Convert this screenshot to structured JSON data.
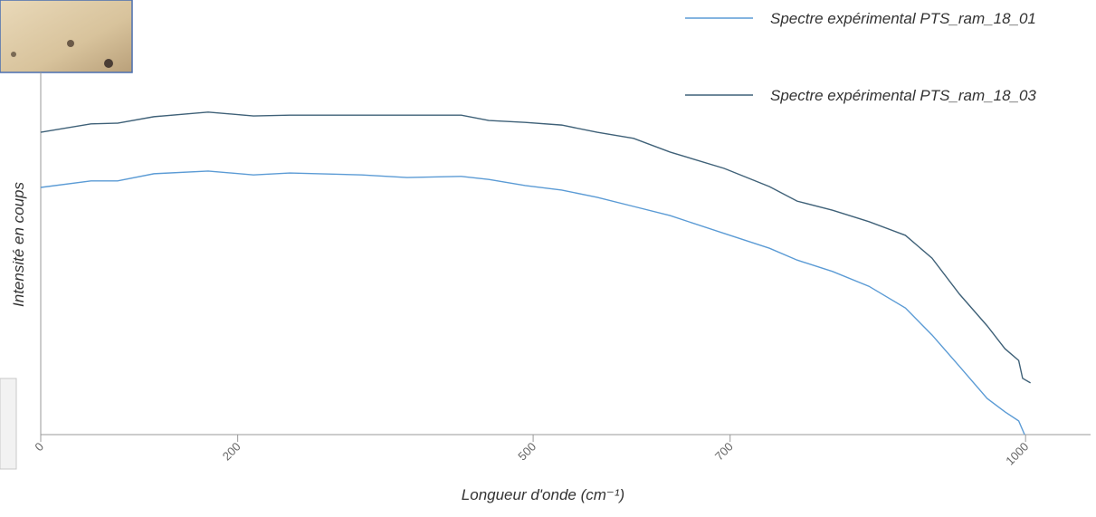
{
  "chart_data": {
    "type": "line",
    "xlabel": "Longueur d'onde (cm⁻¹)",
    "ylabel": "Intensité en coups",
    "xlim": [
      0,
      1066
    ],
    "xticks": [
      0,
      200,
      500,
      700,
      1000
    ],
    "ylim": [
      0,
      100
    ],
    "series": [
      {
        "name": "Spectre expérimental PTS_ram_18_01",
        "color": "#5b9bd5",
        "x": [
          0,
          51,
          78,
          115,
          170,
          216,
          253,
          326,
          372,
          427,
          455,
          492,
          529,
          565,
          602,
          639,
          694,
          740,
          768,
          804,
          841,
          878,
          905,
          933,
          961,
          979,
          993,
          999
        ],
        "values": [
          65.0,
          66.7,
          66.7,
          68.6,
          69.3,
          68.3,
          68.8,
          68.3,
          67.6,
          67.9,
          67.1,
          65.5,
          64.3,
          62.4,
          60.0,
          57.6,
          52.9,
          49.0,
          45.9,
          42.9,
          39.0,
          33.3,
          26.2,
          17.9,
          9.5,
          6.0,
          3.6,
          0
        ]
      },
      {
        "name": "Spectre expérimental PTS_ram_18_03",
        "color": "#3f6178",
        "x": [
          0,
          51,
          78,
          115,
          170,
          216,
          253,
          326,
          372,
          427,
          455,
          492,
          529,
          565,
          602,
          639,
          694,
          740,
          768,
          804,
          841,
          878,
          905,
          933,
          961,
          979,
          993,
          997,
          1005
        ],
        "values": [
          79.5,
          81.7,
          81.9,
          83.6,
          84.8,
          83.8,
          84.0,
          84.0,
          84.0,
          84.0,
          82.6,
          82.1,
          81.4,
          79.5,
          77.9,
          74.3,
          70.0,
          65.2,
          61.4,
          59.0,
          56.0,
          52.4,
          46.4,
          36.9,
          28.6,
          22.6,
          19.5,
          14.8,
          13.6
        ]
      }
    ]
  }
}
